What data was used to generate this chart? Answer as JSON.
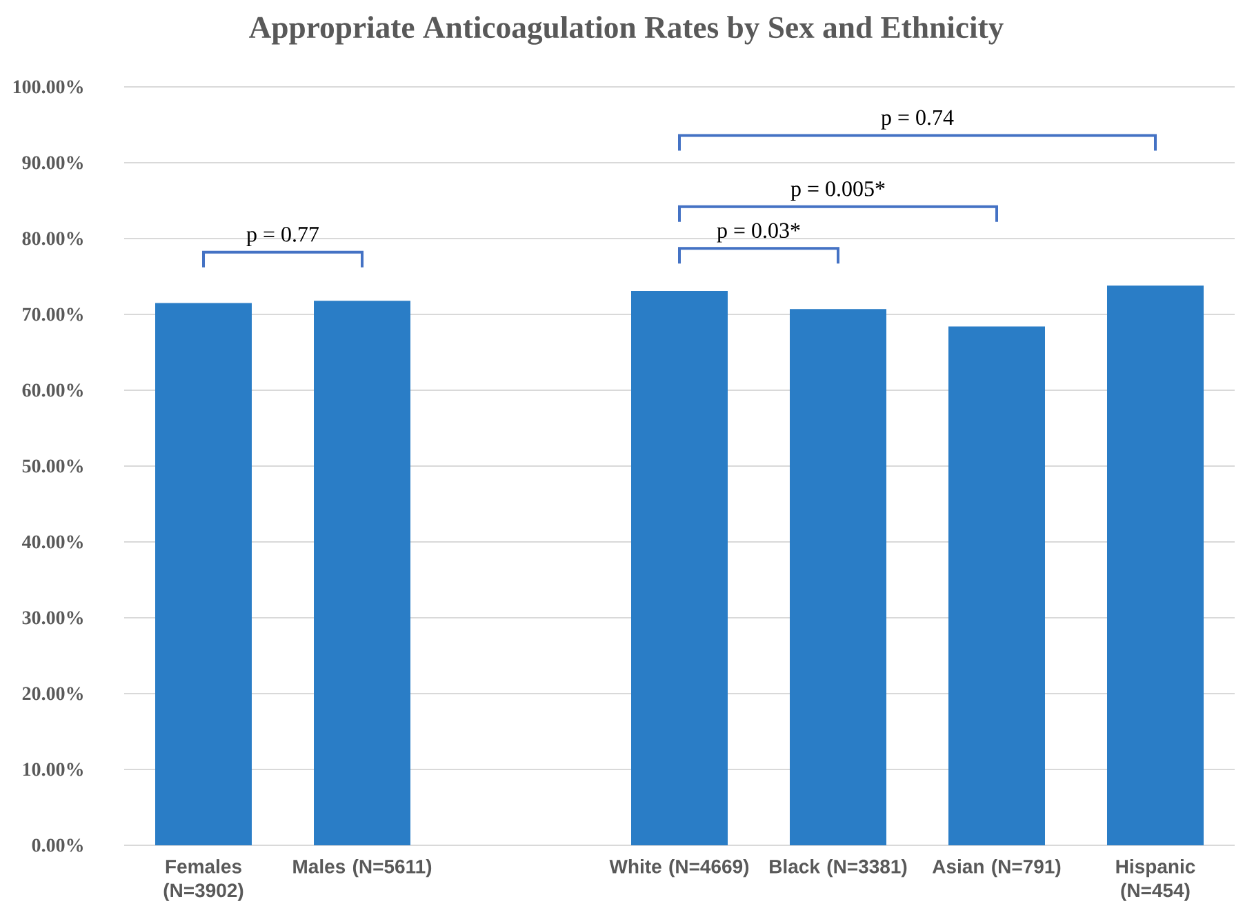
{
  "chart_data": {
    "type": "bar",
    "title": "Appropriate Anticoagulation Rates by Sex and Ethnicity",
    "categories": [
      "Females (N=3902)",
      "Males (N=5611)",
      null,
      "White (N=4669)",
      "Black (N=3381)",
      "Asian (N=791)",
      "Hispanic (N=454)"
    ],
    "values": [
      71.5,
      71.8,
      null,
      73.1,
      70.7,
      68.4,
      73.8
    ],
    "color": "#2a7dc6",
    "ylim": [
      0,
      100
    ],
    "yticks": [
      {
        "value": 0,
        "label": "0.00%"
      },
      {
        "value": 10,
        "label": "10.00%"
      },
      {
        "value": 20,
        "label": "20.00%"
      },
      {
        "value": 30,
        "label": "30.00%"
      },
      {
        "value": 40,
        "label": "40.00%"
      },
      {
        "value": 50,
        "label": "50.00%"
      },
      {
        "value": 60,
        "label": "60.00%"
      },
      {
        "value": 70,
        "label": "70.00%"
      },
      {
        "value": 80,
        "label": "80.00%"
      },
      {
        "value": 90,
        "label": "90.00%"
      },
      {
        "value": 100,
        "label": "100.00%"
      }
    ],
    "grid": "y",
    "annotations": [
      "p = 0.77",
      "p = 0.03*",
      "p = 0.005*",
      "p = 0.74"
    ]
  }
}
